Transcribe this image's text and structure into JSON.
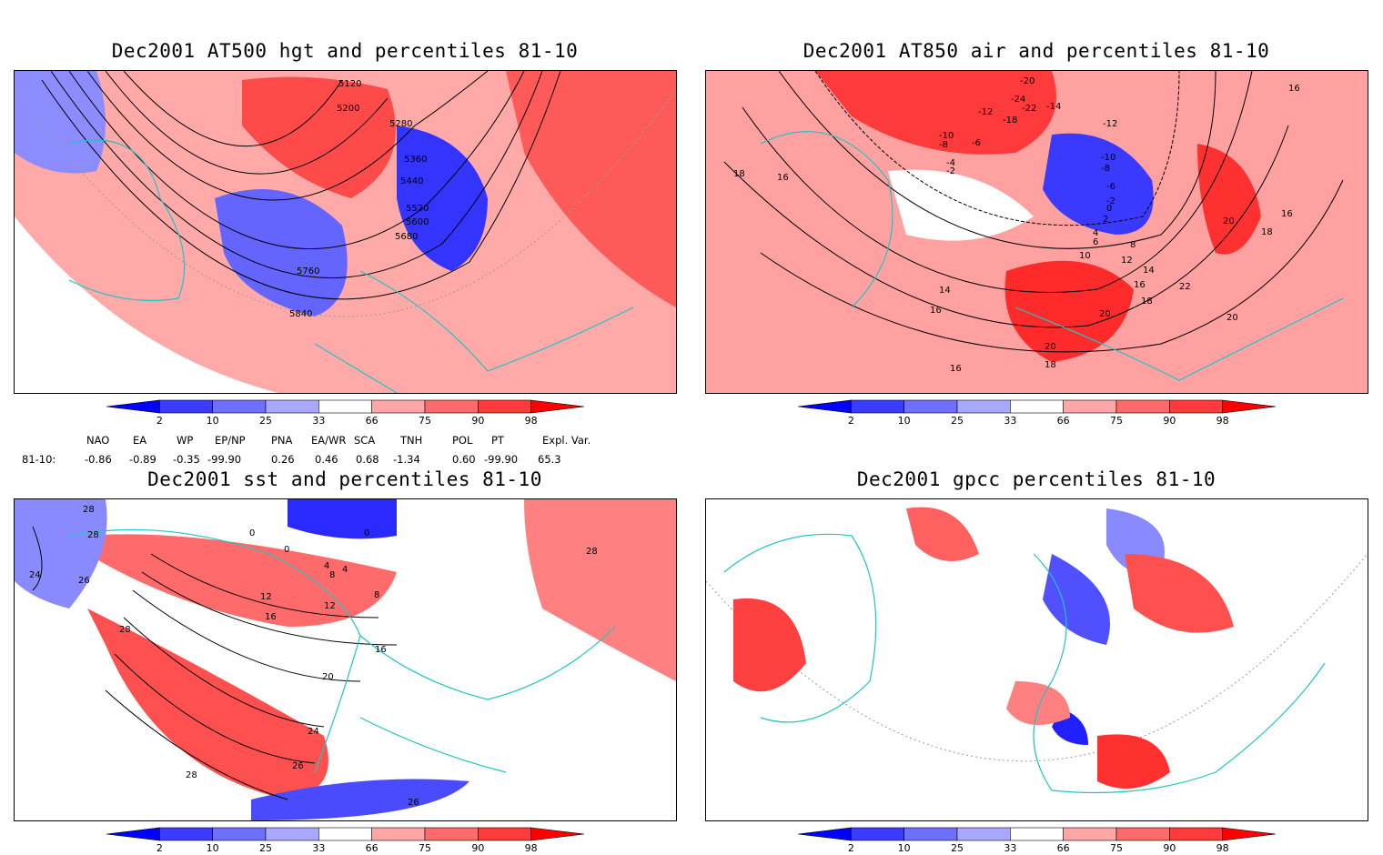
{
  "panels": [
    {
      "title": "Dec2001 AT500 hgt and percentiles 81-10",
      "contour_labels": [
        "5120",
        "5200",
        "5280",
        "5360",
        "5440",
        "5520",
        "5600",
        "5680",
        "5760",
        "5840"
      ]
    },
    {
      "title": "Dec2001 AT850 air and percentiles 81-10",
      "contour_labels": [
        "-20",
        "-24",
        "-22",
        "-14",
        "-12",
        "-18",
        "-10",
        "-8",
        "-6",
        "-4",
        "-2",
        "16",
        "-12",
        "-10",
        "-8",
        "-6",
        "-2",
        "0",
        "2",
        "4",
        "6",
        "8",
        "10",
        "12",
        "14",
        "16",
        "18",
        "20",
        "14",
        "16",
        "18",
        "16",
        "20",
        "22",
        "20",
        "20",
        "18",
        "16",
        "18",
        "16"
      ]
    },
    {
      "title": "Dec2001 sst and percentiles 81-10",
      "contour_labels": [
        "28",
        "28",
        "24",
        "26",
        "0",
        "0",
        "0",
        "4",
        "8",
        "4",
        "8",
        "12",
        "16",
        "16",
        "20",
        "24",
        "28",
        "28",
        "26",
        "26",
        "28",
        "12"
      ]
    },
    {
      "title": "Dec2001 gpcc percentiles 81-10",
      "contour_labels": []
    }
  ],
  "colorbar": {
    "labels": [
      "2",
      "10",
      "25",
      "33",
      "66",
      "75",
      "90",
      "98"
    ],
    "colors": [
      "#0000ff",
      "#3b3bff",
      "#6f6fff",
      "#a8a8ff",
      "#ffffff",
      "#ffa6a6",
      "#ff6a6a",
      "#ff3a3a",
      "#ff0000"
    ]
  },
  "indices": {
    "headers": [
      "NAO",
      "EA",
      "WP",
      "EP/NP",
      "PNA",
      "EA/WR",
      "SCA",
      "TNH",
      "POL",
      "PT",
      "Expl. Var."
    ],
    "row_label": "81-10:",
    "values": [
      "-0.86",
      "-0.89",
      "-0.35",
      "-99.90",
      "0.26",
      "0.46",
      "0.68",
      "-1.34",
      "0.60",
      "-99.90",
      "65.3"
    ]
  },
  "palette": {
    "coast": "#21c4c4",
    "contour": "#000000",
    "neg": "#4a4aff",
    "pos": "#ff5a5a"
  }
}
